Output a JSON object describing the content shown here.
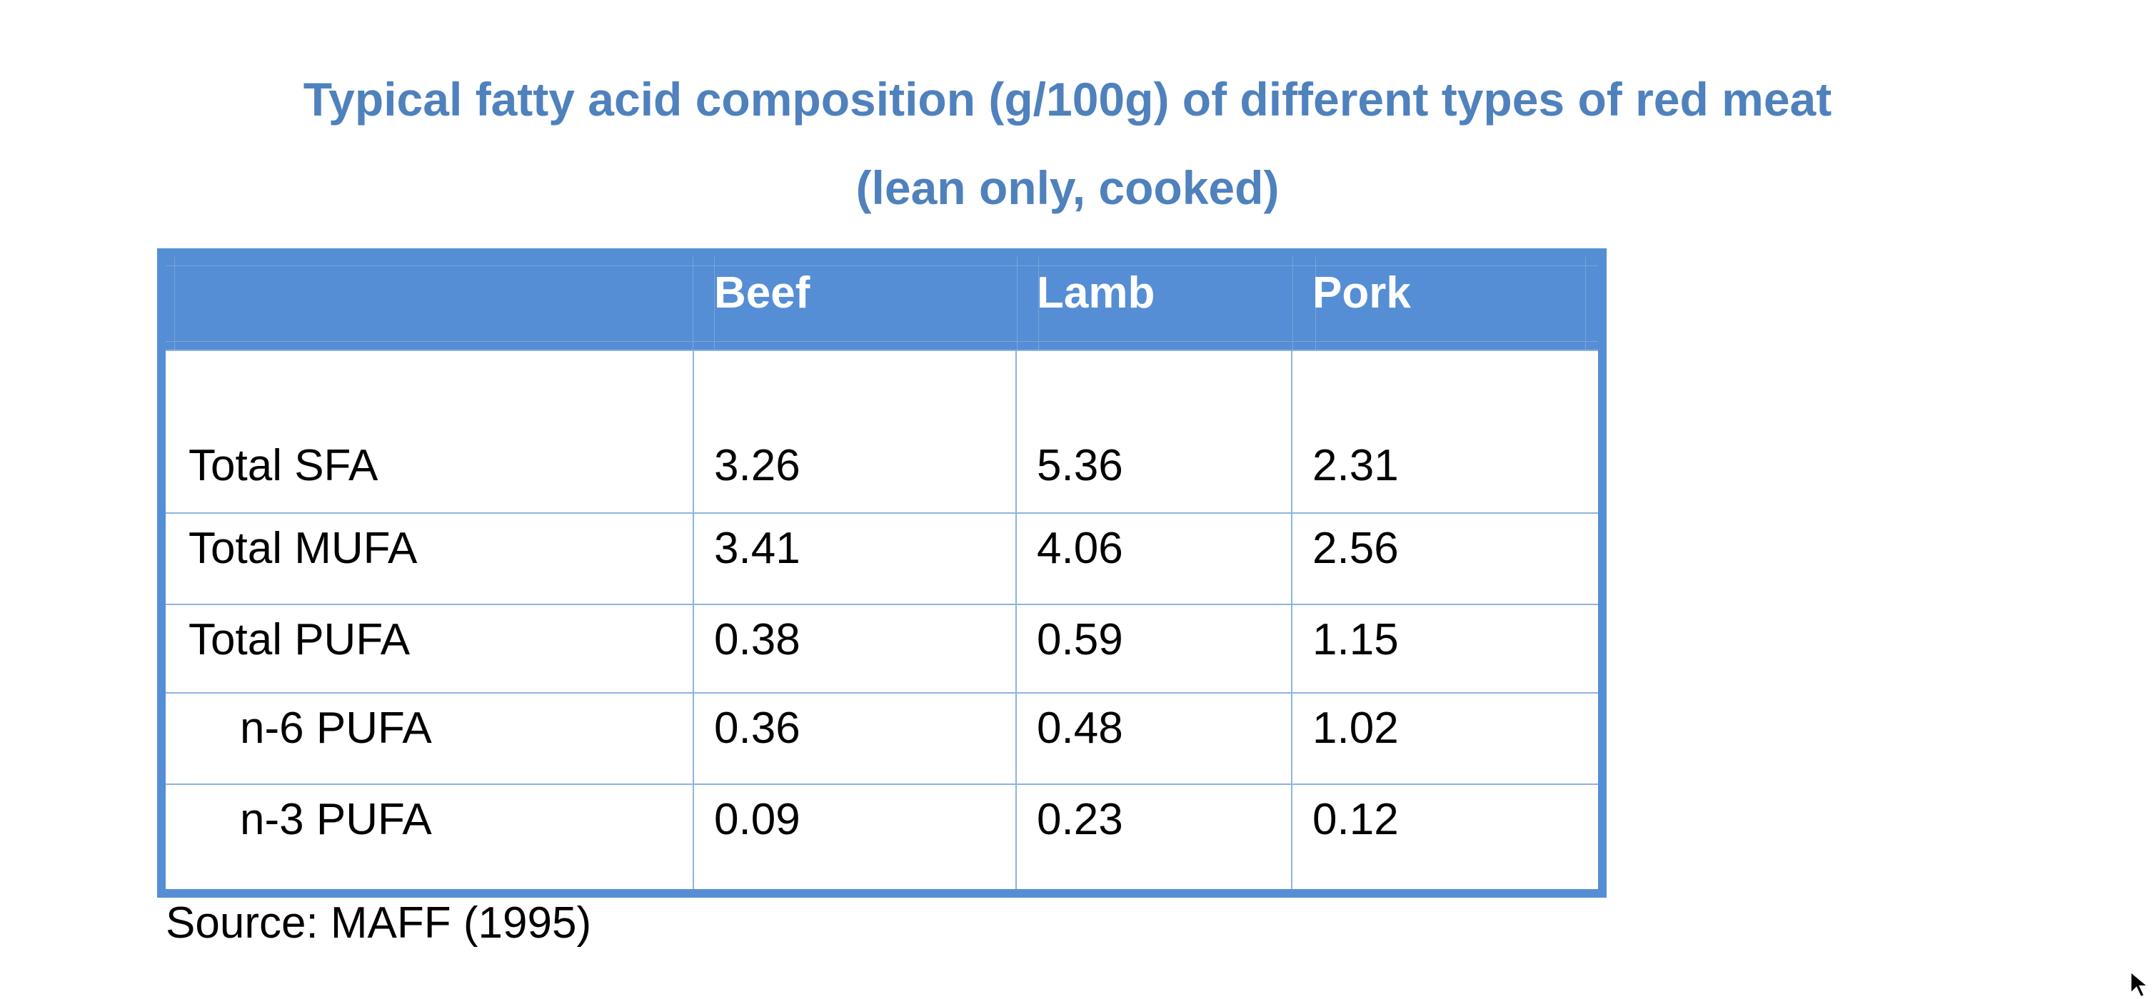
{
  "title": {
    "line1": "Typical fatty acid composition (g/100g) of different types of red meat",
    "line2": "(lean only, cooked)"
  },
  "table": {
    "columns": [
      "",
      "Beef",
      "Lamb",
      "Pork"
    ],
    "rows": [
      {
        "label": "Total SFA",
        "beef": "3.26",
        "lamb": "5.36",
        "pork": "2.31"
      },
      {
        "label": "Total MUFA",
        "beef": "3.41",
        "lamb": "4.06",
        "pork": "2.56"
      },
      {
        "label": "Total PUFA",
        "beef": "0.38",
        "lamb": "0.59",
        "pork": "1.15"
      },
      {
        "label": "n-6 PUFA",
        "beef": "0.36",
        "lamb": "0.48",
        "pork": "1.02"
      },
      {
        "label": "n-3 PUFA",
        "beef": "0.09",
        "lamb": "0.23",
        "pork": "0.12"
      }
    ]
  },
  "source": "Source: MAFF (1995)",
  "colors": {
    "title": "#4f81bd",
    "table_border": "#558ed5",
    "grid_lines": "#8db3e2"
  }
}
